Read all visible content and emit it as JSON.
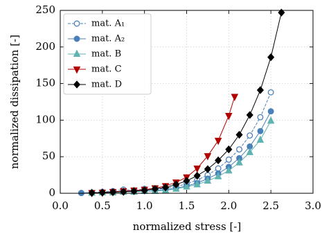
{
  "chart_data": {
    "type": "line",
    "x_label": "normalized stress [-]",
    "y_label": "normalized dissipation [-]",
    "xlim": [
      0,
      3.0
    ],
    "ylim": [
      0,
      250
    ],
    "xticks": [
      {
        "value": 0,
        "label": "0.0"
      },
      {
        "value": 0.5,
        "label": "0.5"
      },
      {
        "value": 1.0,
        "label": "1.0"
      },
      {
        "value": 1.5,
        "label": "1.5"
      },
      {
        "value": 2.0,
        "label": "2.0"
      },
      {
        "value": 2.5,
        "label": "2.5"
      },
      {
        "value": 3.0,
        "label": "3.0"
      }
    ],
    "yticks": [
      0,
      50,
      100,
      150,
      200,
      250
    ],
    "grid": true,
    "legend": "upper left",
    "series": [
      {
        "name": "mat. A₁",
        "color": "#4a80b8",
        "marker": "circle-open",
        "linestyle": "dashed",
        "x": [
          0.25,
          0.375,
          0.5,
          0.625,
          0.75,
          0.875,
          1.0,
          1.125,
          1.25,
          1.375,
          1.5,
          1.625,
          1.75,
          1.875,
          2.0,
          2.125,
          2.25,
          2.375,
          2.5
        ],
        "values": [
          0.5,
          1,
          2,
          3,
          5,
          4,
          6,
          5,
          7,
          9,
          13,
          18,
          25,
          34,
          46,
          60,
          79,
          104,
          138
        ]
      },
      {
        "name": "mat. A₂",
        "color": "#4a80b8",
        "marker": "circle",
        "linestyle": "solid",
        "x": [
          0.25,
          0.375,
          0.5,
          0.625,
          0.75,
          0.875,
          1.0,
          1.125,
          1.25,
          1.375,
          1.5,
          1.625,
          1.75,
          1.875,
          2.0,
          2.125,
          2.25,
          2.375,
          2.5
        ],
        "values": [
          0.3,
          1,
          1,
          2,
          2,
          3,
          3,
          4,
          5,
          7,
          10,
          14,
          20,
          27,
          36,
          48,
          64,
          85,
          112
        ]
      },
      {
        "name": "mat. B",
        "color": "#5fb3b0",
        "marker": "triangle-up",
        "linestyle": "solid",
        "x": [
          0.375,
          0.5,
          0.625,
          0.75,
          0.875,
          1.0,
          1.125,
          1.25,
          1.375,
          1.5,
          1.625,
          1.75,
          1.875,
          2.0,
          2.125,
          2.25,
          2.375,
          2.5
        ],
        "values": [
          0.5,
          1,
          1,
          2,
          2,
          3,
          3,
          4,
          6,
          9,
          12,
          17,
          23,
          31,
          42,
          56,
          73,
          99
        ]
      },
      {
        "name": "mat. C",
        "color": "#b00000",
        "marker": "triangle-down",
        "linestyle": "solid",
        "x": [
          0.375,
          0.5,
          0.625,
          0.75,
          0.875,
          1.0,
          1.125,
          1.25,
          1.375,
          1.5,
          1.625,
          1.75,
          1.875,
          2.0,
          2.07
        ],
        "values": [
          0.5,
          1,
          2,
          3,
          4,
          5,
          7,
          10,
          15,
          22,
          34,
          51,
          72,
          106,
          132
        ]
      },
      {
        "name": "mat. D",
        "color": "#000000",
        "marker": "diamond",
        "linestyle": "solid",
        "x": [
          0.375,
          0.5,
          0.625,
          0.75,
          0.875,
          1.0,
          1.125,
          1.25,
          1.375,
          1.5,
          1.625,
          1.75,
          1.875,
          2.0,
          2.125,
          2.25,
          2.375,
          2.5,
          2.625
        ],
        "values": [
          0.5,
          1,
          1.5,
          2,
          3,
          4,
          6,
          8,
          12,
          17,
          24,
          33,
          45,
          60,
          80,
          107,
          141,
          186,
          247
        ]
      }
    ]
  }
}
